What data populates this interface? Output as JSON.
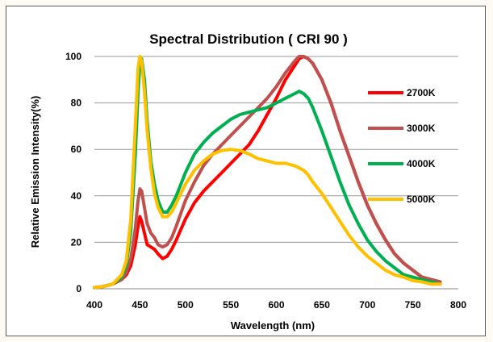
{
  "chart_data": {
    "type": "line",
    "title": "Spectral Distribution ( CRI 90 )",
    "xlabel": "Wavelength (nm)",
    "ylabel": "Relative Emission Intensity(%)",
    "xlim": [
      400,
      800
    ],
    "ylim": [
      0,
      100
    ],
    "xticks": [
      400,
      450,
      500,
      550,
      600,
      650,
      700,
      750,
      800
    ],
    "yticks": [
      0,
      20,
      40,
      60,
      80,
      100
    ],
    "grid": "horizontal",
    "legend_position": "right",
    "series": [
      {
        "name": "2700K",
        "color": "#ff0000",
        "x": [
          400,
          410,
          420,
          430,
          435,
          440,
          445,
          448,
          450,
          452,
          455,
          458,
          462,
          466,
          470,
          475,
          480,
          485,
          490,
          500,
          510,
          520,
          530,
          540,
          550,
          560,
          570,
          580,
          590,
          600,
          610,
          620,
          625,
          630,
          635,
          640,
          650,
          660,
          670,
          680,
          690,
          700,
          710,
          720,
          730,
          740,
          750,
          760,
          770,
          780
        ],
        "y": [
          0.5,
          1,
          2,
          4,
          6,
          10,
          19,
          27,
          31,
          29,
          24,
          19,
          18,
          17,
          15,
          13,
          14,
          17,
          21,
          30,
          37,
          42,
          46,
          50,
          54,
          58,
          62,
          68,
          75,
          82,
          90,
          96,
          99,
          100,
          99,
          97,
          90,
          80,
          68,
          57,
          46,
          36,
          28,
          21,
          15,
          11,
          8,
          5,
          4,
          3
        ]
      },
      {
        "name": "3000K",
        "color": "#c0504d",
        "x": [
          400,
          410,
          420,
          430,
          435,
          440,
          445,
          448,
          450,
          452,
          455,
          458,
          462,
          466,
          470,
          475,
          480,
          485,
          490,
          500,
          510,
          520,
          530,
          540,
          550,
          560,
          570,
          580,
          590,
          600,
          610,
          620,
          625,
          630,
          635,
          640,
          650,
          660,
          670,
          680,
          690,
          700,
          710,
          720,
          730,
          740,
          750,
          760,
          770,
          780
        ],
        "y": [
          0.5,
          1,
          2,
          4,
          7,
          13,
          26,
          38,
          43,
          42,
          35,
          28,
          24,
          22,
          19,
          18,
          19,
          22,
          27,
          38,
          46,
          53,
          58,
          62,
          66,
          70,
          74,
          78,
          82,
          87,
          93,
          98,
          100,
          100,
          99,
          97,
          90,
          80,
          68,
          57,
          46,
          36,
          28,
          21,
          15,
          11,
          8,
          5,
          4,
          3
        ]
      },
      {
        "name": "4000K",
        "color": "#00b050",
        "x": [
          400,
          410,
          420,
          430,
          435,
          440,
          445,
          448,
          450,
          452,
          455,
          458,
          462,
          466,
          470,
          475,
          480,
          485,
          490,
          500,
          510,
          520,
          530,
          540,
          550,
          560,
          570,
          580,
          590,
          600,
          610,
          620,
          625,
          630,
          635,
          640,
          650,
          660,
          670,
          680,
          690,
          700,
          710,
          720,
          730,
          740,
          750,
          760,
          770,
          780
        ],
        "y": [
          0.5,
          1,
          2,
          5,
          10,
          25,
          58,
          85,
          97,
          99,
          90,
          72,
          55,
          45,
          38,
          33,
          33,
          36,
          40,
          50,
          58,
          63,
          67,
          70,
          73,
          75,
          76,
          77,
          78,
          80,
          82,
          84,
          85,
          84,
          82,
          78,
          68,
          57,
          46,
          36,
          28,
          21,
          16,
          12,
          9,
          6,
          5,
          4,
          3,
          2
        ]
      },
      {
        "name": "5000K",
        "color": "#ffc000",
        "x": [
          400,
          410,
          420,
          430,
          435,
          440,
          445,
          448,
          450,
          452,
          455,
          458,
          462,
          466,
          470,
          475,
          480,
          485,
          490,
          500,
          510,
          520,
          530,
          540,
          550,
          560,
          570,
          580,
          590,
          600,
          610,
          620,
          625,
          630,
          635,
          640,
          650,
          660,
          670,
          680,
          690,
          700,
          710,
          720,
          730,
          740,
          750,
          760,
          770,
          780
        ],
        "y": [
          0.5,
          1,
          2,
          6,
          12,
          30,
          70,
          95,
          100,
          98,
          85,
          68,
          52,
          41,
          35,
          31,
          31,
          33,
          37,
          45,
          51,
          55,
          58,
          59.5,
          60,
          59.5,
          58,
          56,
          55,
          54,
          54,
          53,
          52,
          51,
          49,
          46,
          41,
          35,
          29,
          23,
          18,
          14,
          11,
          8,
          6,
          5,
          3.5,
          3,
          2,
          2
        ]
      }
    ]
  }
}
